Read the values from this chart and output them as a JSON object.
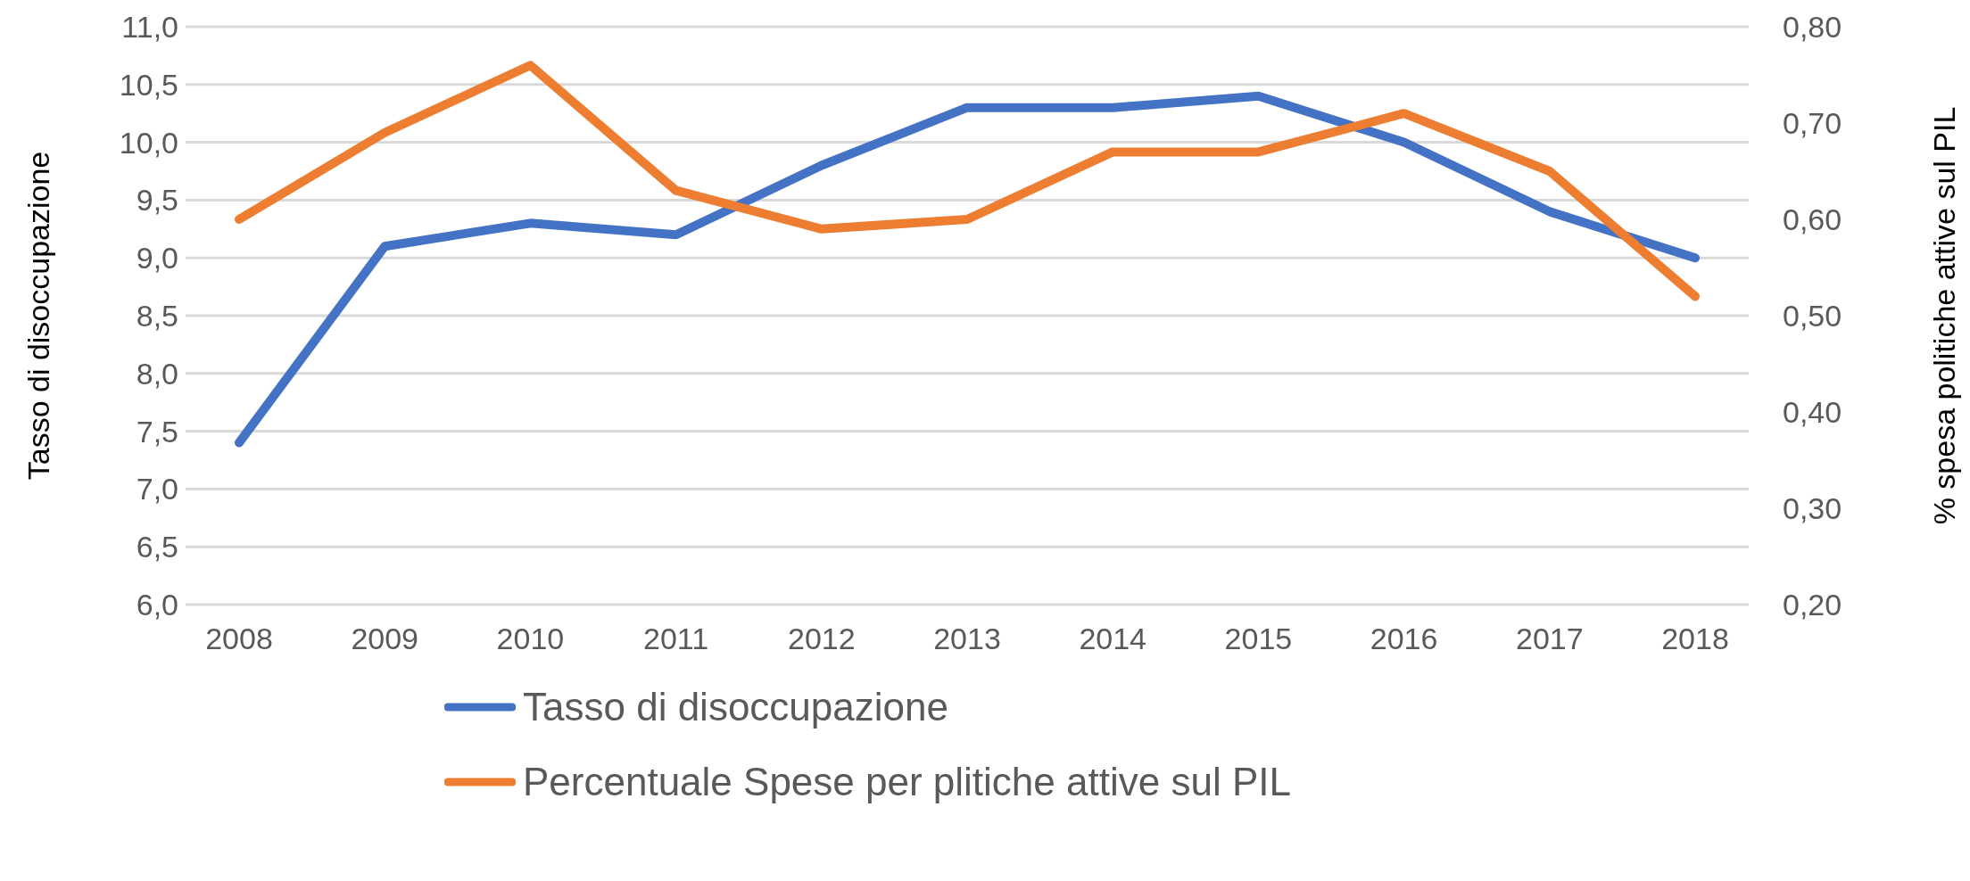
{
  "chart_data": {
    "type": "line",
    "ylabel": "Tasso di disoccupazione",
    "y2label": "% spesa politiche attive sul PIL",
    "categories": [
      "2008",
      "2009",
      "2010",
      "2011",
      "2012",
      "2013",
      "2014",
      "2015",
      "2016",
      "2017",
      "2018"
    ],
    "series": [
      {
        "name": "Tasso di disoccupazione",
        "color": "#4472c4",
        "values": [
          7.4,
          9.1,
          9.3,
          9.2,
          9.8,
          10.3,
          10.3,
          10.4,
          10.0,
          9.4,
          9.0
        ]
      },
      {
        "name": "Percentuale Spese per plitiche attive sul PIL",
        "color": "#ed7d31",
        "axis": "y2",
        "values": [
          0.6,
          0.69,
          0.76,
          0.63,
          0.59,
          0.6,
          0.67,
          0.67,
          0.71,
          0.65,
          0.52
        ]
      }
    ],
    "ylim": [
      6,
      11
    ],
    "yticks": [
      {
        "value": 6,
        "label": "6,0"
      },
      {
        "value": 6.5,
        "label": "6,5"
      },
      {
        "value": 7,
        "label": "7,0"
      },
      {
        "value": 7.5,
        "label": "7,5"
      },
      {
        "value": 8,
        "label": "8,0"
      },
      {
        "value": 8.5,
        "label": "8,5"
      },
      {
        "value": 9,
        "label": "9,0"
      },
      {
        "value": 9.5,
        "label": "9,5"
      },
      {
        "value": 10,
        "label": "10,0"
      },
      {
        "value": 10.5,
        "label": "10,5"
      },
      {
        "value": 11,
        "label": "11,0"
      }
    ],
    "y2lim": [
      0.2,
      0.8
    ],
    "y2ticks": [
      {
        "value": 0.2,
        "label": "0,20"
      },
      {
        "value": 0.3,
        "label": "0,30"
      },
      {
        "value": 0.4,
        "label": "0,40"
      },
      {
        "value": 0.5,
        "label": "0,50"
      },
      {
        "value": 0.6,
        "label": "0,60"
      },
      {
        "value": 0.7,
        "label": "0,70"
      },
      {
        "value": 0.8,
        "label": "0,80"
      }
    ],
    "grid": "y",
    "legend": "bottom",
    "marker": "none",
    "line_style": "solid"
  }
}
